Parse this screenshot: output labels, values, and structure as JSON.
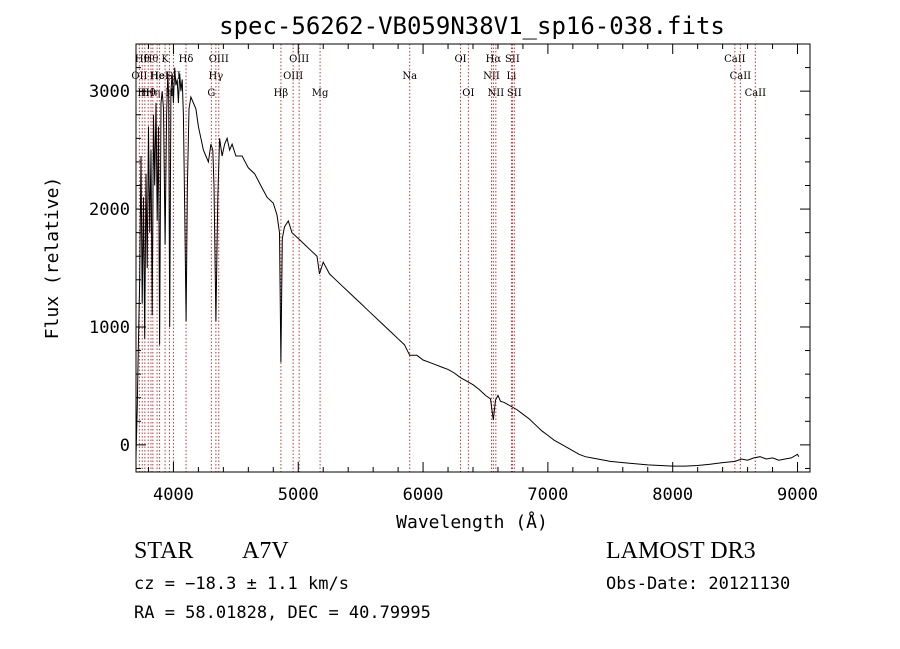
{
  "chart_data": {
    "type": "line",
    "title": "spec-56262-VB059N38V1_sp16-038.fits",
    "xlabel": "Wavelength (Å)",
    "ylabel": "Flux (relative)",
    "xlim": [
      3700,
      9100
    ],
    "ylim": [
      -230,
      3400
    ],
    "xticks": [
      {
        "value": 4000,
        "label": "4000"
      },
      {
        "value": 5000,
        "label": "5000"
      },
      {
        "value": 6000,
        "label": "6000"
      },
      {
        "value": 7000,
        "label": "7000"
      },
      {
        "value": 8000,
        "label": "8000"
      },
      {
        "value": 9000,
        "label": "9000"
      }
    ],
    "yticks": [
      {
        "value": 0,
        "label": "0"
      },
      {
        "value": 1000,
        "label": "1000"
      },
      {
        "value": 2000,
        "label": "2000"
      },
      {
        "value": 3000,
        "label": "3000"
      }
    ],
    "series": [
      {
        "name": "spectrum",
        "color": "#000000",
        "points": [
          [
            3700,
            -100
          ],
          [
            3710,
            300
          ],
          [
            3720,
            900
          ],
          [
            3730,
            1400
          ],
          [
            3740,
            2450
          ],
          [
            3750,
            1200
          ],
          [
            3760,
            2100
          ],
          [
            3770,
            900
          ],
          [
            3780,
            2300
          ],
          [
            3790,
            1500
          ],
          [
            3800,
            2700
          ],
          [
            3810,
            1800
          ],
          [
            3820,
            2500
          ],
          [
            3830,
            1100
          ],
          [
            3840,
            2800
          ],
          [
            3850,
            2200
          ],
          [
            3860,
            2900
          ],
          [
            3870,
            1900
          ],
          [
            3880,
            2700
          ],
          [
            3889,
            850
          ],
          [
            3900,
            2900
          ],
          [
            3910,
            3000
          ],
          [
            3920,
            2850
          ],
          [
            3933,
            1700
          ],
          [
            3945,
            2800
          ],
          [
            3955,
            3150
          ],
          [
            3962,
            2950
          ],
          [
            3970,
            1000
          ],
          [
            3980,
            3000
          ],
          [
            3990,
            3150
          ],
          [
            4000,
            2900
          ],
          [
            4010,
            3200
          ],
          [
            4020,
            3050
          ],
          [
            4030,
            3100
          ],
          [
            4040,
            2900
          ],
          [
            4050,
            3150
          ],
          [
            4060,
            3000
          ],
          [
            4070,
            3100
          ],
          [
            4080,
            2800
          ],
          [
            4090,
            2000
          ],
          [
            4101,
            1050
          ],
          [
            4112,
            2200
          ],
          [
            4125,
            2850
          ],
          [
            4140,
            2950
          ],
          [
            4160,
            2900
          ],
          [
            4180,
            2850
          ],
          [
            4200,
            2700
          ],
          [
            4220,
            2600
          ],
          [
            4240,
            2500
          ],
          [
            4260,
            2450
          ],
          [
            4280,
            2400
          ],
          [
            4300,
            2550
          ],
          [
            4315,
            2500
          ],
          [
            4325,
            2200
          ],
          [
            4340,
            1050
          ],
          [
            4355,
            2100
          ],
          [
            4370,
            2600
          ],
          [
            4390,
            2450
          ],
          [
            4410,
            2550
          ],
          [
            4430,
            2600
          ],
          [
            4450,
            2500
          ],
          [
            4470,
            2550
          ],
          [
            4500,
            2450
          ],
          [
            4550,
            2450
          ],
          [
            4600,
            2350
          ],
          [
            4650,
            2300
          ],
          [
            4700,
            2200
          ],
          [
            4750,
            2100
          ],
          [
            4800,
            2050
          ],
          [
            4830,
            1950
          ],
          [
            4850,
            1800
          ],
          [
            4861,
            700
          ],
          [
            4872,
            1750
          ],
          [
            4890,
            1850
          ],
          [
            4920,
            1900
          ],
          [
            4950,
            1800
          ],
          [
            5000,
            1750
          ],
          [
            5050,
            1700
          ],
          [
            5100,
            1650
          ],
          [
            5150,
            1600
          ],
          [
            5170,
            1450
          ],
          [
            5200,
            1550
          ],
          [
            5250,
            1450
          ],
          [
            5300,
            1400
          ],
          [
            5350,
            1350
          ],
          [
            5400,
            1300
          ],
          [
            5450,
            1250
          ],
          [
            5500,
            1200
          ],
          [
            5550,
            1150
          ],
          [
            5600,
            1100
          ],
          [
            5650,
            1050
          ],
          [
            5700,
            1000
          ],
          [
            5750,
            950
          ],
          [
            5800,
            900
          ],
          [
            5850,
            850
          ],
          [
            5893,
            760
          ],
          [
            5950,
            760
          ],
          [
            6000,
            720
          ],
          [
            6050,
            700
          ],
          [
            6100,
            680
          ],
          [
            6150,
            660
          ],
          [
            6200,
            640
          ],
          [
            6250,
            610
          ],
          [
            6300,
            570
          ],
          [
            6350,
            540
          ],
          [
            6400,
            510
          ],
          [
            6450,
            470
          ],
          [
            6500,
            420
          ],
          [
            6540,
            390
          ],
          [
            6563,
            210
          ],
          [
            6580,
            380
          ],
          [
            6600,
            420
          ],
          [
            6620,
            370
          ],
          [
            6650,
            360
          ],
          [
            6700,
            330
          ],
          [
            6750,
            300
          ],
          [
            6800,
            260
          ],
          [
            6850,
            220
          ],
          [
            6900,
            170
          ],
          [
            6950,
            120
          ],
          [
            7000,
            80
          ],
          [
            7050,
            40
          ],
          [
            7100,
            10
          ],
          [
            7150,
            -20
          ],
          [
            7200,
            -50
          ],
          [
            7250,
            -80
          ],
          [
            7300,
            -100
          ],
          [
            7350,
            -110
          ],
          [
            7400,
            -120
          ],
          [
            7500,
            -140
          ],
          [
            7600,
            -150
          ],
          [
            7700,
            -160
          ],
          [
            7800,
            -170
          ],
          [
            7900,
            -175
          ],
          [
            8000,
            -180
          ],
          [
            8100,
            -180
          ],
          [
            8200,
            -175
          ],
          [
            8300,
            -165
          ],
          [
            8400,
            -150
          ],
          [
            8500,
            -140
          ],
          [
            8550,
            -120
          ],
          [
            8600,
            -130
          ],
          [
            8650,
            -110
          ],
          [
            8700,
            -100
          ],
          [
            8750,
            -120
          ],
          [
            8800,
            -110
          ],
          [
            8850,
            -130
          ],
          [
            8900,
            -120
          ],
          [
            8950,
            -110
          ],
          [
            9000,
            -80
          ],
          [
            9010,
            -100
          ]
        ]
      }
    ],
    "lines": [
      {
        "wl": 3727,
        "label": "OII",
        "row": 1
      },
      {
        "wl": 3750,
        "label": "Hθ",
        "row": 0
      },
      {
        "wl": 3771,
        "label": "Hη",
        "row": 2
      },
      {
        "wl": 3798,
        "label": "Hθ",
        "row": 2
      },
      {
        "wl": 3820,
        "label": "Hθ",
        "row": 0
      },
      {
        "wl": 3835,
        "label": "Hη",
        "row": 2
      },
      {
        "wl": 3869,
        "label": "He",
        "row": 1
      },
      {
        "wl": 3889,
        "label": "HeI",
        "row": 1
      },
      {
        "wl": 3933,
        "label": "K",
        "row": 0
      },
      {
        "wl": 3968,
        "label": "H",
        "row": 2
      },
      {
        "wl": 4000,
        "label": "SII",
        "row": 1
      },
      {
        "wl": 4101,
        "label": "Hδ",
        "row": 0
      },
      {
        "wl": 4304,
        "label": "G",
        "row": 2
      },
      {
        "wl": 4340,
        "label": "Hγ",
        "row": 1
      },
      {
        "wl": 4363,
        "label": "OIII",
        "row": 0
      },
      {
        "wl": 4861,
        "label": "Hβ",
        "row": 2
      },
      {
        "wl": 4959,
        "label": "OIII",
        "row": 1
      },
      {
        "wl": 5007,
        "label": "OIII",
        "row": 0
      },
      {
        "wl": 5175,
        "label": "Mg",
        "row": 2
      },
      {
        "wl": 5893,
        "label": "Na",
        "row": 1
      },
      {
        "wl": 6300,
        "label": "OI",
        "row": 0
      },
      {
        "wl": 6363,
        "label": "OI",
        "row": 2
      },
      {
        "wl": 6548,
        "label": "NII",
        "row": 1
      },
      {
        "wl": 6563,
        "label": "Hα",
        "row": 0
      },
      {
        "wl": 6583,
        "label": "NII",
        "row": 2
      },
      {
        "wl": 6716,
        "label": "SII",
        "row": 0
      },
      {
        "wl": 6731,
        "label": "SII",
        "row": 2
      },
      {
        "wl": 6708,
        "label": "Li",
        "row": 1
      },
      {
        "wl": 8498,
        "label": "CaII",
        "row": 0
      },
      {
        "wl": 8542,
        "label": "CaII",
        "row": 1
      },
      {
        "wl": 8662,
        "label": "CaII",
        "row": 2
      }
    ],
    "line_color": "#cc3333"
  },
  "info": {
    "object_class": "STAR",
    "subclass": "A7V",
    "survey": "LAMOST DR3",
    "cz": "cz = −18.3 ± 1.1 km/s",
    "obs_date": "Obs-Date: 20121130",
    "coords": "RA =  58.01828, DEC =  40.79995"
  }
}
